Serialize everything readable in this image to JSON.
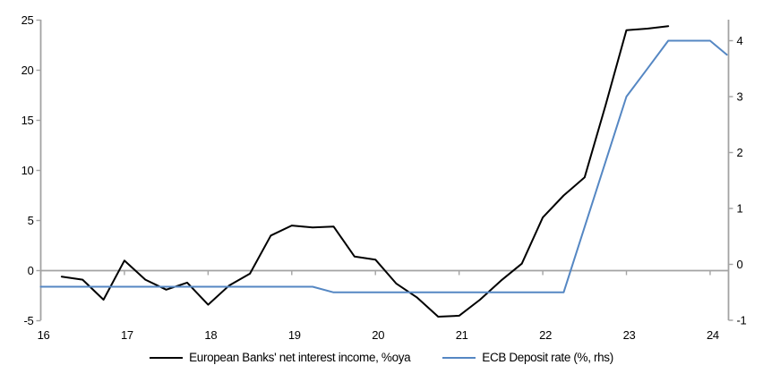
{
  "chart_data": {
    "type": "line",
    "title": "",
    "grid": "zero-line-only",
    "legend_position": "bottom-center",
    "x_axis": {
      "min": 16,
      "max": 24.22,
      "ticks": [
        16,
        17,
        18,
        19,
        20,
        21,
        22,
        23,
        24
      ]
    },
    "left_axis": {
      "label": "",
      "min": -5,
      "max": 25,
      "ticks": [
        25,
        20,
        15,
        10,
        5,
        0,
        -5
      ]
    },
    "right_axis": {
      "label": "",
      "min": -1,
      "max": 4.6,
      "ticks": [
        4,
        3,
        2,
        1,
        0,
        -1
      ]
    },
    "series": [
      {
        "name": "European Banks' net interest income, %oya",
        "axis": "left",
        "color": "#000000",
        "width": 2,
        "points": [
          [
            16.25,
            -0.6
          ],
          [
            16.5,
            -0.9
          ],
          [
            16.75,
            -2.9
          ],
          [
            17.0,
            1.0
          ],
          [
            17.25,
            -0.9
          ],
          [
            17.5,
            -1.9
          ],
          [
            17.75,
            -1.2
          ],
          [
            18.0,
            -3.4
          ],
          [
            18.25,
            -1.5
          ],
          [
            18.5,
            -0.3
          ],
          [
            18.75,
            3.5
          ],
          [
            19.0,
            4.5
          ],
          [
            19.25,
            4.3
          ],
          [
            19.5,
            4.4
          ],
          [
            19.75,
            1.4
          ],
          [
            20.0,
            1.1
          ],
          [
            20.25,
            -1.3
          ],
          [
            20.5,
            -2.7
          ],
          [
            20.75,
            -4.6
          ],
          [
            21.0,
            -4.5
          ],
          [
            21.25,
            -2.9
          ],
          [
            21.5,
            -1.0
          ],
          [
            21.75,
            0.7
          ],
          [
            22.0,
            5.3
          ],
          [
            22.25,
            7.5
          ],
          [
            22.5,
            9.3
          ],
          [
            22.75,
            16.5
          ],
          [
            23.0,
            24.0
          ],
          [
            23.25,
            24.15
          ],
          [
            23.5,
            24.4
          ]
        ]
      },
      {
        "name": "ECB Deposit rate (%, rhs)",
        "axis": "right",
        "color": "#5587C3",
        "width": 2,
        "points": [
          [
            16.0,
            -0.4
          ],
          [
            19.25,
            -0.4
          ],
          [
            19.5,
            -0.5
          ],
          [
            22.25,
            -0.5
          ],
          [
            23.0,
            3.0
          ],
          [
            23.25,
            3.5
          ],
          [
            23.5,
            4.0
          ],
          [
            24.0,
            4.0
          ],
          [
            24.2,
            3.75
          ]
        ]
      }
    ]
  },
  "colors": {
    "axis": "#A3A3A3",
    "zero_line": "#A3A3A3",
    "text": "#000000",
    "background": "#FFFFFF"
  }
}
